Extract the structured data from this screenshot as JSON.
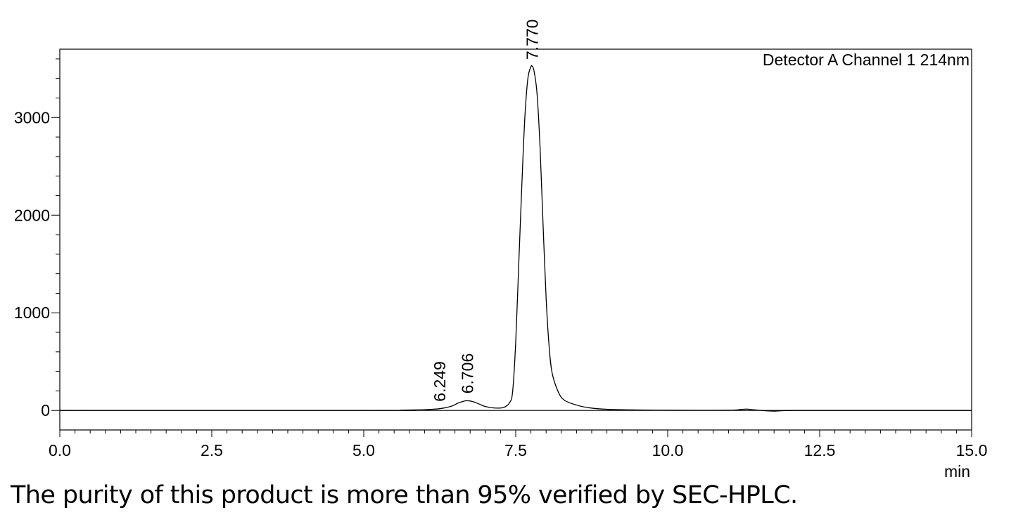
{
  "caption": "The purity of this product is more than 95% verified by SEC-HPLC.",
  "chart_data": {
    "type": "line",
    "title": "",
    "legend_text": "Detector A Channel 1 214nm",
    "legend_position": "top-right",
    "xlabel": "min",
    "ylabel": "",
    "xlim": [
      0.0,
      15.0
    ],
    "ylim": [
      -200,
      3700
    ],
    "x_ticks": [
      0.0,
      2.5,
      5.0,
      7.5,
      10.0,
      12.5,
      15.0
    ],
    "x_tick_labels": [
      "0.0",
      "2.5",
      "5.0",
      "7.5",
      "10.0",
      "12.5",
      "15.0"
    ],
    "y_ticks": [
      0,
      1000,
      2000,
      3000
    ],
    "y_tick_labels": [
      "0",
      "1000",
      "2000",
      "3000"
    ],
    "grid": false,
    "baseline": 0,
    "peaks": [
      {
        "label": "6.249",
        "rt": 6.249,
        "height": 18
      },
      {
        "label": "6.706",
        "rt": 6.706,
        "height": 100
      },
      {
        "label": "7.770",
        "rt": 7.77,
        "height": 3520
      }
    ],
    "series": [
      {
        "x": [
          0.0,
          5.4,
          5.6,
          5.8,
          6.0,
          6.249,
          6.45,
          6.55,
          6.65,
          6.706,
          6.8,
          6.9,
          7.0,
          7.15,
          7.3,
          7.4,
          7.45,
          7.5,
          7.55,
          7.6,
          7.65,
          7.7,
          7.75,
          7.77,
          7.8,
          7.85,
          7.9,
          7.95,
          8.0,
          8.05,
          8.1,
          8.2,
          8.3,
          8.5,
          8.7,
          9.0,
          9.5,
          10.0,
          11.0,
          11.2,
          11.3,
          11.4,
          11.6,
          11.75,
          11.9,
          12.1,
          13.0,
          15.0
        ],
        "y": [
          0,
          0,
          2,
          5,
          8,
          18,
          45,
          75,
          95,
          100,
          90,
          65,
          40,
          25,
          30,
          80,
          200,
          700,
          1500,
          2300,
          3000,
          3400,
          3520,
          3525,
          3480,
          3250,
          2700,
          1900,
          1150,
          650,
          380,
          190,
          105,
          55,
          28,
          12,
          5,
          2,
          2,
          10,
          14,
          8,
          -3,
          -7,
          -2,
          0,
          0,
          0
        ]
      }
    ]
  }
}
